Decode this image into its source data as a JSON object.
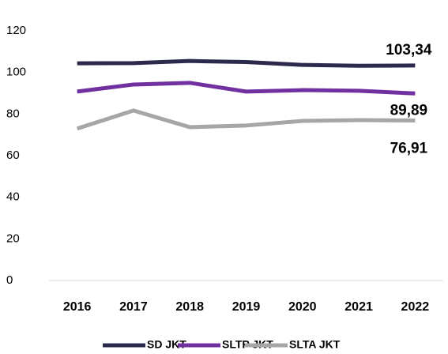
{
  "chart_data": {
    "type": "line",
    "categories": [
      "2016",
      "2017",
      "2018",
      "2019",
      "2020",
      "2021",
      "2022"
    ],
    "series": [
      {
        "name": "SD JKT",
        "color": "#2b2a4c",
        "values": [
          104.4,
          104.5,
          105.5,
          105,
          103.6,
          103.2,
          103.34
        ],
        "value_labels": [
          null,
          null,
          null,
          null,
          null,
          null,
          "103,34"
        ]
      },
      {
        "name": "SLTP JKT",
        "color": "#7030a0",
        "values": [
          90.8,
          94.2,
          95,
          90.8,
          91.5,
          91.2,
          89.89
        ],
        "value_labels": [
          null,
          null,
          null,
          null,
          null,
          null,
          "89,89"
        ]
      },
      {
        "name": "SLTA JKT",
        "color": "#a6a6a6",
        "values": [
          73,
          81.7,
          73.7,
          74.5,
          76.7,
          77.1,
          76.91
        ],
        "value_labels": [
          null,
          null,
          null,
          null,
          null,
          null,
          "76,91"
        ]
      }
    ],
    "ylim": [
      0,
      120
    ],
    "yticks": [
      0,
      20,
      40,
      60,
      80,
      100,
      120
    ],
    "grid": false,
    "legend": "bottom"
  }
}
